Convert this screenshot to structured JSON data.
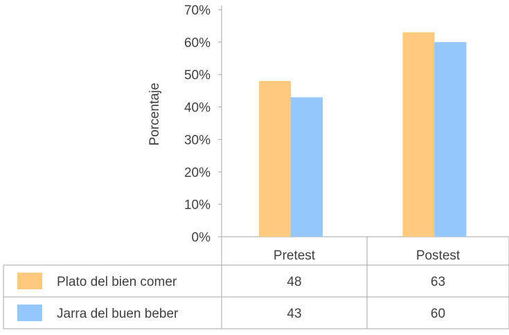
{
  "chart_data": {
    "type": "bar",
    "ylabel": "Porcentaje",
    "y_tick_labels": [
      "0%",
      "10%",
      "20%",
      "30%",
      "40%",
      "50%",
      "60%",
      "70%"
    ],
    "ylim": [
      0,
      70
    ],
    "grid": false,
    "legend": "data-table",
    "categories": [
      "Pretest",
      "Postest"
    ],
    "series": [
      {
        "name": "Plato del bien comer",
        "values": [
          48,
          63
        ],
        "color": "#FFC97E"
      },
      {
        "name": "Jarra del buen beber",
        "values": [
          43,
          60
        ],
        "color": "#94C8FC"
      }
    ]
  }
}
